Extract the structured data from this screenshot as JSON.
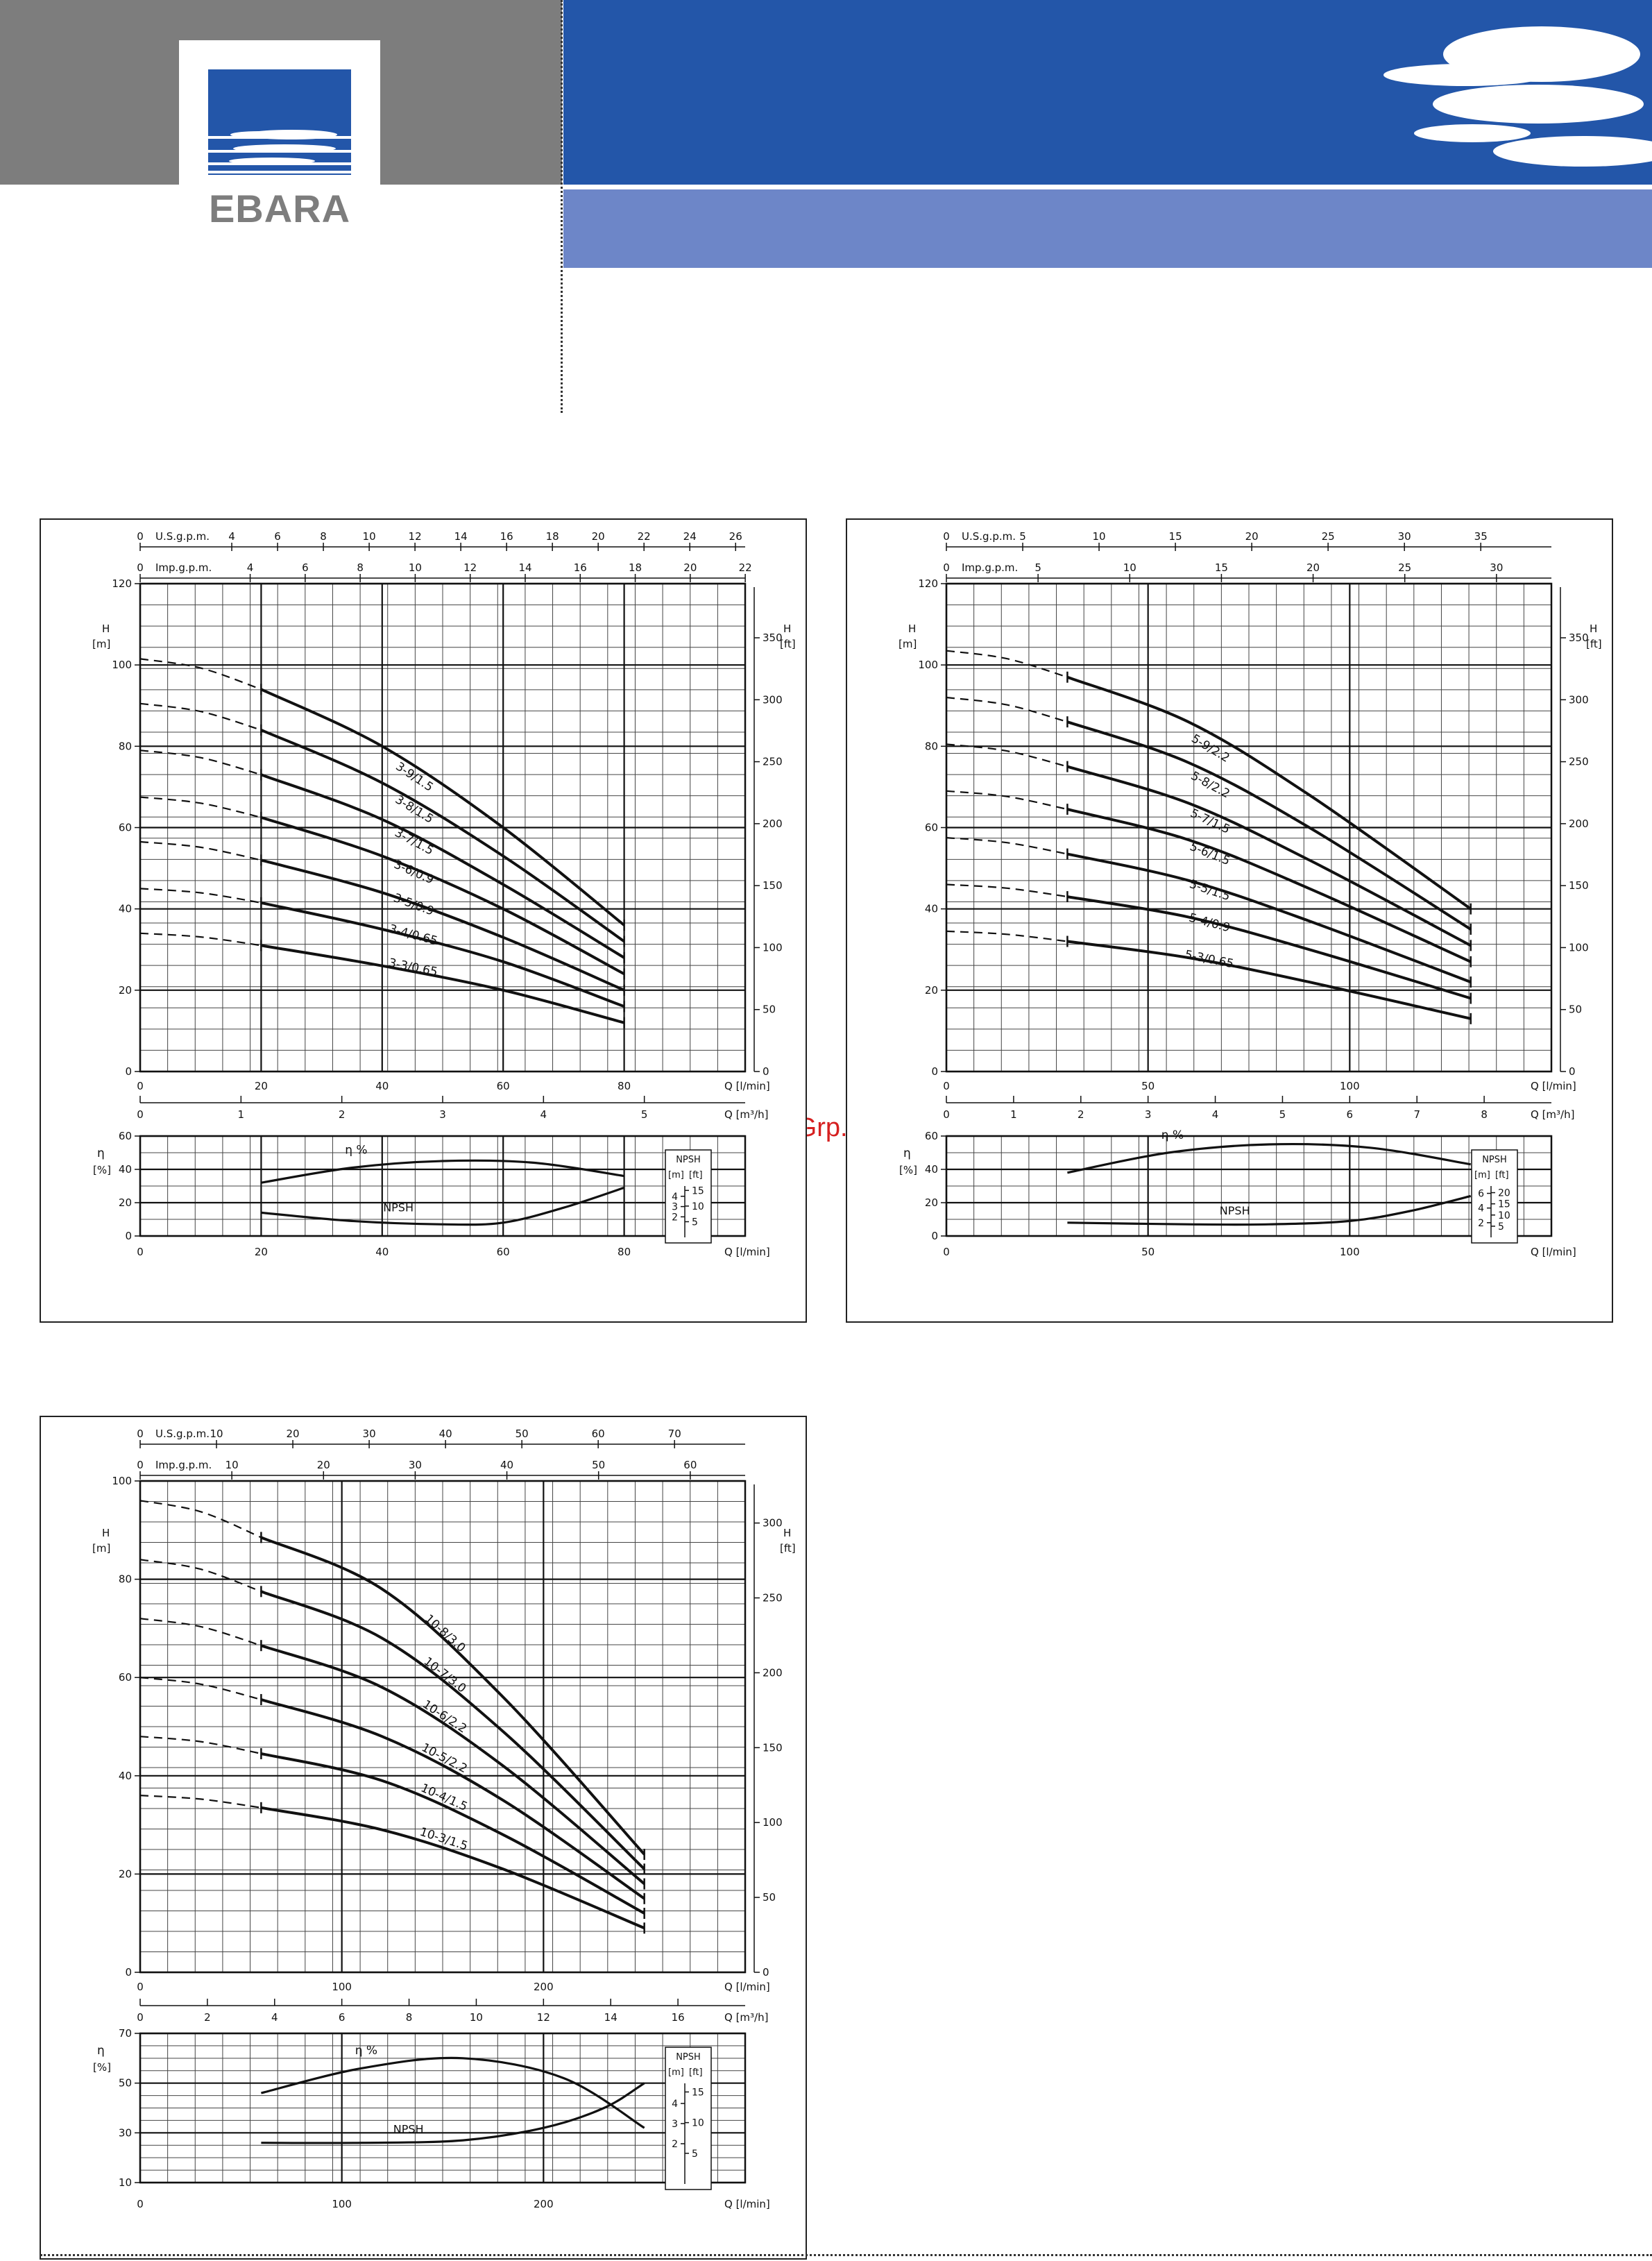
{
  "brand": {
    "logo_text": "EBARA",
    "blue": "#2356a9",
    "light_blue": "#6d86c8",
    "grey": "#7d7d7d"
  },
  "watermark": "McGrp.Ru",
  "chart_data": [
    {
      "type": "line",
      "top_axes": {
        "usgpm": {
          "label": "U.S.g.p.m.",
          "ticks": [
            0,
            4,
            6,
            8,
            10,
            12,
            14,
            16,
            18,
            20,
            22,
            24,
            26
          ]
        },
        "imp": {
          "label": "Imp.g.p.m.",
          "ticks": [
            0,
            4,
            6,
            8,
            10,
            12,
            14,
            16,
            18,
            20,
            22
          ]
        }
      },
      "head": {
        "ylabel": "H",
        "yunit": "[m]",
        "ylim": [
          0,
          120
        ],
        "yticks": [
          0,
          20,
          40,
          60,
          80,
          100,
          120
        ],
        "ylabel_right": "H",
        "yunit_right": "[ft]",
        "ft_ticks": [
          0,
          50,
          100,
          150,
          200,
          250,
          300,
          350
        ],
        "xlabel": "Q [l/min]",
        "xlim": [
          0,
          100
        ],
        "xticks": [
          0,
          20,
          40,
          60,
          80
        ],
        "m3h_label": "Q [m³/h]",
        "m3h_ticks": [
          0,
          1,
          2,
          3,
          4,
          5
        ]
      },
      "series": [
        {
          "name": "3-9/1.5",
          "shutoff": 101.5,
          "x": [
            20,
            40,
            60,
            80
          ],
          "y": [
            94,
            80,
            60,
            36
          ]
        },
        {
          "name": "3-8/1.5",
          "shutoff": 90.5,
          "x": [
            20,
            40,
            60,
            80
          ],
          "y": [
            84,
            71,
            53,
            32
          ]
        },
        {
          "name": "3-7/1.5",
          "shutoff": 79,
          "x": [
            20,
            40,
            60,
            80
          ],
          "y": [
            73,
            62,
            46,
            28
          ]
        },
        {
          "name": "3-6/0.9",
          "shutoff": 67.5,
          "x": [
            20,
            40,
            60,
            80
          ],
          "y": [
            62.5,
            53,
            40,
            24
          ]
        },
        {
          "name": "3-5/0.9",
          "shutoff": 56.5,
          "x": [
            20,
            40,
            60,
            80
          ],
          "y": [
            52,
            44,
            33,
            20
          ]
        },
        {
          "name": "3-4/0.65",
          "shutoff": 45,
          "x": [
            20,
            40,
            60,
            80
          ],
          "y": [
            41.5,
            35,
            27,
            16
          ]
        },
        {
          "name": "3-3/0.65",
          "shutoff": 34,
          "x": [
            20,
            40,
            60,
            80
          ],
          "y": [
            31,
            26,
            20,
            12
          ]
        }
      ],
      "efficiency": {
        "label": "η %",
        "ylabel": "η",
        "yunit": "[%]",
        "ylim": [
          0,
          60
        ],
        "yticks": [
          0,
          20,
          40,
          60
        ],
        "x": [
          20,
          35,
          50,
          65,
          80
        ],
        "y": [
          32,
          41,
          45,
          44,
          36
        ]
      },
      "npsh": {
        "label": "NPSH",
        "unit_m": "[m]",
        "unit_ft": "[ft]",
        "m_ticks": [
          2,
          3,
          4
        ],
        "ft_ticks": [
          5,
          10,
          15
        ],
        "x": [
          20,
          35,
          50,
          60,
          70,
          80
        ],
        "y": [
          14,
          9,
          7,
          8,
          17,
          29
        ]
      },
      "bottom_xticks": [
        0,
        20,
        40,
        60,
        80
      ]
    },
    {
      "type": "line",
      "top_axes": {
        "usgpm": {
          "label": "U.S.g.p.m.",
          "ticks": [
            0,
            5,
            10,
            15,
            20,
            25,
            30,
            35
          ]
        },
        "imp": {
          "label": "Imp.g.p.m.",
          "ticks": [
            0,
            5,
            10,
            15,
            20,
            25,
            30
          ]
        }
      },
      "head": {
        "ylabel": "H",
        "yunit": "[m]",
        "ylim": [
          0,
          120
        ],
        "yticks": [
          0,
          20,
          40,
          60,
          80,
          100,
          120
        ],
        "ylabel_right": "H",
        "yunit_right": "[ft]",
        "ft_ticks": [
          0,
          50,
          100,
          150,
          200,
          250,
          300,
          350
        ],
        "xlabel": "Q [l/min]",
        "xlim": [
          0,
          150
        ],
        "xticks": [
          0,
          50,
          100
        ],
        "m3h_label": "Q [m³/h]",
        "m3h_ticks": [
          0,
          1,
          2,
          3,
          4,
          5,
          6,
          7,
          8
        ]
      },
      "series": [
        {
          "name": "5-9/2.2",
          "shutoff": 103.5,
          "x": [
            30,
            60,
            90,
            130
          ],
          "y": [
            97,
            86,
            68,
            40
          ]
        },
        {
          "name": "5-8/2.2",
          "shutoff": 92,
          "x": [
            30,
            60,
            90,
            130
          ],
          "y": [
            86,
            76,
            60,
            35
          ]
        },
        {
          "name": "5-7/1.5",
          "shutoff": 80.5,
          "x": [
            30,
            60,
            90,
            130
          ],
          "y": [
            75,
            66,
            52,
            31
          ]
        },
        {
          "name": "5-6/1.5",
          "shutoff": 69,
          "x": [
            30,
            60,
            90,
            130
          ],
          "y": [
            64.5,
            57,
            45,
            27
          ]
        },
        {
          "name": "5-5/1.5",
          "shutoff": 57.5,
          "x": [
            30,
            60,
            90,
            130
          ],
          "y": [
            53.5,
            47,
            37,
            22
          ]
        },
        {
          "name": "5-4/0.9",
          "shutoff": 46,
          "x": [
            30,
            60,
            90,
            130
          ],
          "y": [
            43,
            38,
            30,
            18
          ]
        },
        {
          "name": "5-3/0.65",
          "shutoff": 34.5,
          "x": [
            30,
            60,
            90,
            130
          ],
          "y": [
            32,
            28,
            22,
            13
          ]
        }
      ],
      "efficiency": {
        "label": "η %",
        "ylabel": "η",
        "yunit": "[%]",
        "ylim": [
          0,
          60
        ],
        "yticks": [
          0,
          20,
          40,
          60
        ],
        "x": [
          30,
          55,
          80,
          105,
          130
        ],
        "y": [
          38,
          50,
          55,
          53,
          43
        ]
      },
      "npsh": {
        "label": "NPSH",
        "unit_m": "[m]",
        "unit_ft": "[ft]",
        "m_ticks": [
          2,
          4,
          6
        ],
        "ft_ticks": [
          5,
          10,
          15,
          20
        ],
        "x": [
          30,
          60,
          80,
          100,
          115,
          130
        ],
        "y": [
          8,
          7,
          7,
          9,
          15,
          24
        ]
      },
      "bottom_xticks": [
        0,
        50,
        100
      ]
    },
    {
      "type": "line",
      "top_axes": {
        "usgpm": {
          "label": "U.S.g.p.m.",
          "ticks": [
            0,
            10,
            20,
            30,
            40,
            50,
            60,
            70
          ]
        },
        "imp": {
          "label": "Imp.g.p.m.",
          "ticks": [
            0,
            10,
            20,
            30,
            40,
            50,
            60
          ]
        }
      },
      "head": {
        "ylabel": "H",
        "yunit": "[m]",
        "ylim": [
          0,
          100
        ],
        "yticks": [
          0,
          20,
          40,
          60,
          80,
          100
        ],
        "ylabel_right": "H",
        "yunit_right": "[ft]",
        "ft_ticks": [
          0,
          50,
          100,
          150,
          200,
          250,
          300
        ],
        "xlabel": "Q [l/min]",
        "xlim": [
          0,
          300
        ],
        "xticks": [
          0,
          100,
          200
        ],
        "m3h_label": "Q [m³/h]",
        "m3h_ticks": [
          0,
          2,
          4,
          6,
          8,
          10,
          12,
          14,
          16
        ]
      },
      "series": [
        {
          "name": "10-8/3.0",
          "shutoff": 96,
          "x": [
            60,
            120,
            180,
            250
          ],
          "y": [
            88.5,
            78,
            56,
            24
          ]
        },
        {
          "name": "10-7/3.0",
          "shutoff": 84,
          "x": [
            60,
            120,
            180,
            250
          ],
          "y": [
            77.5,
            68,
            49,
            21
          ]
        },
        {
          "name": "10-6/2.2",
          "shutoff": 72,
          "x": [
            60,
            120,
            180,
            250
          ],
          "y": [
            66.5,
            58,
            42,
            18
          ]
        },
        {
          "name": "10-5/2.2",
          "shutoff": 60,
          "x": [
            60,
            120,
            180,
            250
          ],
          "y": [
            55.5,
            48,
            35,
            15
          ]
        },
        {
          "name": "10-4/1.5",
          "shutoff": 48,
          "x": [
            60,
            120,
            180,
            250
          ],
          "y": [
            44.5,
            39,
            28,
            12
          ]
        },
        {
          "name": "10-3/1.5",
          "shutoff": 36,
          "x": [
            60,
            120,
            180,
            250
          ],
          "y": [
            33.5,
            29,
            21,
            9
          ]
        }
      ],
      "efficiency": {
        "label": "η %",
        "ylabel": "η",
        "yunit": "[%]",
        "ylim": [
          10,
          70
        ],
        "yticks": [
          10,
          30,
          50,
          70
        ],
        "x": [
          60,
          110,
          160,
          210,
          250
        ],
        "y": [
          46,
          56,
          60,
          52,
          32
        ]
      },
      "npsh": {
        "label": "NPSH",
        "unit_m": "[m]",
        "unit_ft": "[ft]",
        "m_ticks": [
          2,
          3,
          4
        ],
        "ft_ticks": [
          5,
          10,
          15
        ],
        "x": [
          60,
          110,
          160,
          200,
          230,
          250
        ],
        "y": [
          16,
          16,
          17,
          22,
          30,
          40
        ]
      },
      "bottom_xticks": [
        0,
        100,
        200
      ]
    }
  ]
}
